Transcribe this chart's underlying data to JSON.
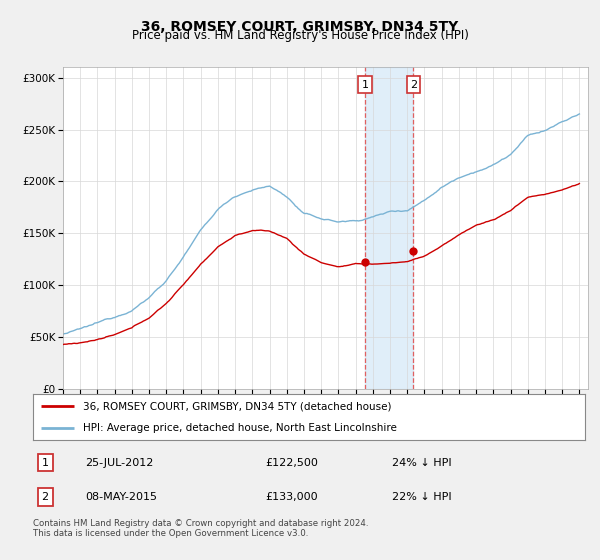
{
  "title": "36, ROMSEY COURT, GRIMSBY, DN34 5TY",
  "subtitle": "Price paid vs. HM Land Registry's House Price Index (HPI)",
  "ylim": [
    0,
    310000
  ],
  "yticks": [
    0,
    50000,
    100000,
    150000,
    200000,
    250000,
    300000
  ],
  "xlim_start": 1995.0,
  "xlim_end": 2025.5,
  "hpi_color": "#7ab3d4",
  "price_color": "#cc0000",
  "background_color": "#f0f0f0",
  "plot_bg_color": "#ffffff",
  "legend_label_property": "36, ROMSEY COURT, GRIMSBY, DN34 5TY (detached house)",
  "legend_label_hpi": "HPI: Average price, detached house, North East Lincolnshire",
  "transaction1_date": "25-JUL-2012",
  "transaction1_price": "£122,500",
  "transaction1_hpi": "24% ↓ HPI",
  "transaction1_year": 2012.56,
  "transaction2_date": "08-MAY-2015",
  "transaction2_price": "£133,000",
  "transaction2_hpi": "22% ↓ HPI",
  "transaction2_year": 2015.36,
  "footer": "Contains HM Land Registry data © Crown copyright and database right 2024.\nThis data is licensed under the Open Government Licence v3.0.",
  "shade_start": 2012.56,
  "shade_end": 2015.36,
  "hpi_base_years": [
    1995,
    1996,
    1997,
    1998,
    1999,
    2000,
    2001,
    2002,
    2003,
    2004,
    2005,
    2006,
    2007,
    2008,
    2009,
    2010,
    2011,
    2012,
    2013,
    2014,
    2015,
    2016,
    2017,
    2018,
    2019,
    2020,
    2021,
    2022,
    2023,
    2024,
    2025
  ],
  "hpi_base_vals": [
    53000,
    57000,
    62000,
    68000,
    76000,
    88000,
    105000,
    128000,
    152000,
    172000,
    185000,
    192000,
    195000,
    185000,
    168000,
    163000,
    160000,
    161000,
    165000,
    170000,
    172000,
    182000,
    195000,
    205000,
    212000,
    218000,
    228000,
    245000,
    250000,
    258000,
    265000
  ],
  "prop_base_vals": [
    43000,
    45000,
    48000,
    52000,
    58000,
    68000,
    82000,
    100000,
    120000,
    137000,
    148000,
    153000,
    152000,
    145000,
    130000,
    122000,
    118000,
    120000,
    120000,
    121000,
    122500,
    128000,
    138000,
    148000,
    158000,
    163000,
    172000,
    185000,
    188000,
    192000,
    198000
  ]
}
